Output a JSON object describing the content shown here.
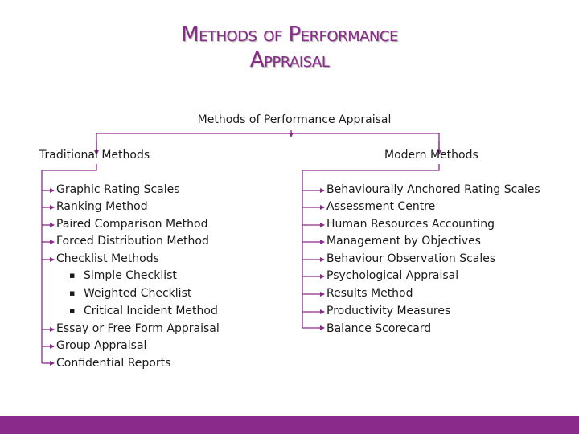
{
  "title": {
    "line1": "Methods of Performance",
    "line2": "Appraisal"
  },
  "root": "Methods of Performance Appraisal",
  "traditional": {
    "label": "Traditional Methods",
    "items": [
      "Graphic Rating Scales",
      "Ranking Method",
      "Paired Comparison Method",
      "Forced Distribution Method",
      "Checklist Methods"
    ],
    "checklist_subitems": [
      "Simple Checklist",
      "Weighted Checklist",
      "Critical Incident Method"
    ],
    "items_after": [
      "Essay or Free Form Appraisal",
      "Group Appraisal",
      "Confidential Reports"
    ]
  },
  "modern": {
    "label": "Modern Methods",
    "items": [
      "Behaviourally Anchored Rating Scales",
      "Assessment Centre",
      "Human Resources Accounting",
      "Management by Objectives",
      "Behaviour Observation Scales",
      "Psychological Appraisal",
      "Results Method",
      "Productivity Measures",
      "Balance Scorecard"
    ]
  },
  "colors": {
    "accent": "#8a2a8a",
    "connector": "#8a2a8a",
    "text": "#1a1a1a"
  }
}
